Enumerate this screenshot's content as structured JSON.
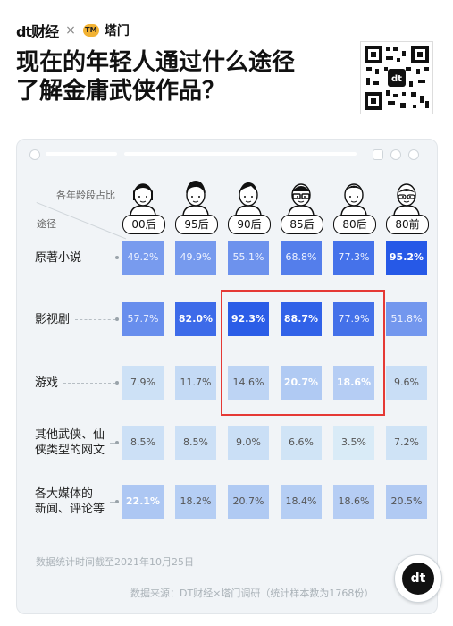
{
  "header": {
    "brand_left": "dt财经",
    "brand_sep": "×",
    "brand_right": "塔门",
    "brand_badge": "TM",
    "title_line1": "现在的年轻人通过什么途径",
    "title_line2": "了解金庸武侠作品？"
  },
  "panel": {
    "corner_top": "各年龄段占比",
    "corner_bottom": "途径"
  },
  "chart_data": {
    "type": "heatmap",
    "categories": [
      "00后",
      "95后",
      "90后",
      "85后",
      "80后",
      "80前"
    ],
    "rows": [
      {
        "label": "原著小说",
        "values": [
          49.2,
          49.9,
          55.1,
          68.8,
          77.3,
          95.2
        ]
      },
      {
        "label": "影视剧",
        "values": [
          57.7,
          82.0,
          92.3,
          88.7,
          77.9,
          51.8
        ]
      },
      {
        "label": "游戏",
        "values": [
          7.9,
          11.7,
          14.6,
          20.7,
          18.6,
          9.6
        ]
      },
      {
        "label": "其他武侠、仙侠类型的网文",
        "values": [
          8.5,
          8.5,
          9.0,
          6.6,
          3.5,
          7.2
        ]
      },
      {
        "label": "各大媒体的新闻、评论等",
        "values": [
          22.1,
          18.2,
          20.7,
          18.4,
          18.6,
          20.5
        ]
      }
    ],
    "bold_cells": [
      [
        0,
        5
      ],
      [
        1,
        1
      ],
      [
        1,
        2
      ],
      [
        1,
        3
      ],
      [
        2,
        3
      ],
      [
        2,
        4
      ],
      [
        4,
        0
      ]
    ],
    "highlight": {
      "rows": [
        1,
        2
      ],
      "cols": [
        2,
        4
      ],
      "color": "#e53935"
    },
    "colors": {
      "low": "#e4f4f8",
      "high": "#1e52e6"
    }
  },
  "row_label_lines": [
    [
      "原著小说"
    ],
    [
      "影视剧"
    ],
    [
      "游戏"
    ],
    [
      "其他武侠、仙",
      "侠类型的网文"
    ],
    [
      "各大媒体的",
      "新闻、评论等"
    ]
  ],
  "cell_text": [
    [
      "49.2%",
      "49.9%",
      "55.1%",
      "68.8%",
      "77.3%",
      "95.2%"
    ],
    [
      "57.7%",
      "82.0%",
      "92.3%",
      "88.7%",
      "77.9%",
      "51.8%"
    ],
    [
      "7.9%",
      "11.7%",
      "14.6%",
      "20.7%",
      "18.6%",
      "9.6%"
    ],
    [
      "8.5%",
      "8.5%",
      "9.0%",
      "6.6%",
      "3.5%",
      "7.2%"
    ],
    [
      "22.1%",
      "18.2%",
      "20.7%",
      "18.4%",
      "18.6%",
      "20.5%"
    ]
  ],
  "footer": {
    "date_note": "数据统计时间截至2021年10月25日",
    "source_note": "数据来源：DT财经×塔门调研（统计样本数为1768份）",
    "round_logo": "dt"
  }
}
